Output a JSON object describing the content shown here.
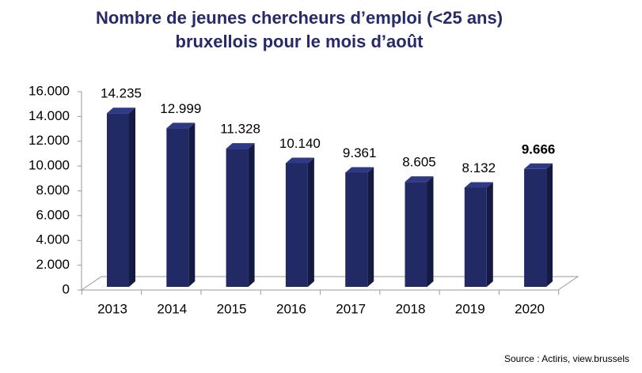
{
  "chart_data": {
    "type": "bar",
    "title": "Nombre de jeunes chercheurs d’emploi (<25 ans)",
    "subtitle": "bruxellois pour le mois d’août",
    "categories": [
      "2013",
      "2014",
      "2015",
      "2016",
      "2017",
      "2018",
      "2019",
      "2020"
    ],
    "values": [
      14235,
      12999,
      11328,
      10140,
      9361,
      8605,
      8132,
      9666
    ],
    "value_labels": [
      "14.235",
      "12.999",
      "11.328",
      "10.140",
      "9.361",
      "8.605",
      "8.132",
      "9.666"
    ],
    "color": "#222a66",
    "ylim": [
      0,
      16000
    ],
    "yticks": [
      0,
      {
        "value": 2000,
        "label": "2.000"
      },
      {
        "value": 4000,
        "label": "4.000"
      },
      {
        "value": 6000,
        "label": "6.000"
      },
      {
        "value": 8000,
        "label": "8.000"
      },
      {
        "value": 10000,
        "label": "10.000"
      },
      {
        "value": 12000,
        "label": "12.000"
      },
      {
        "value": 14000,
        "label": "14.000"
      },
      {
        "value": 16000,
        "label": "16.000"
      }
    ],
    "grid": false,
    "source": "Source : Actiris, view.brussels"
  }
}
